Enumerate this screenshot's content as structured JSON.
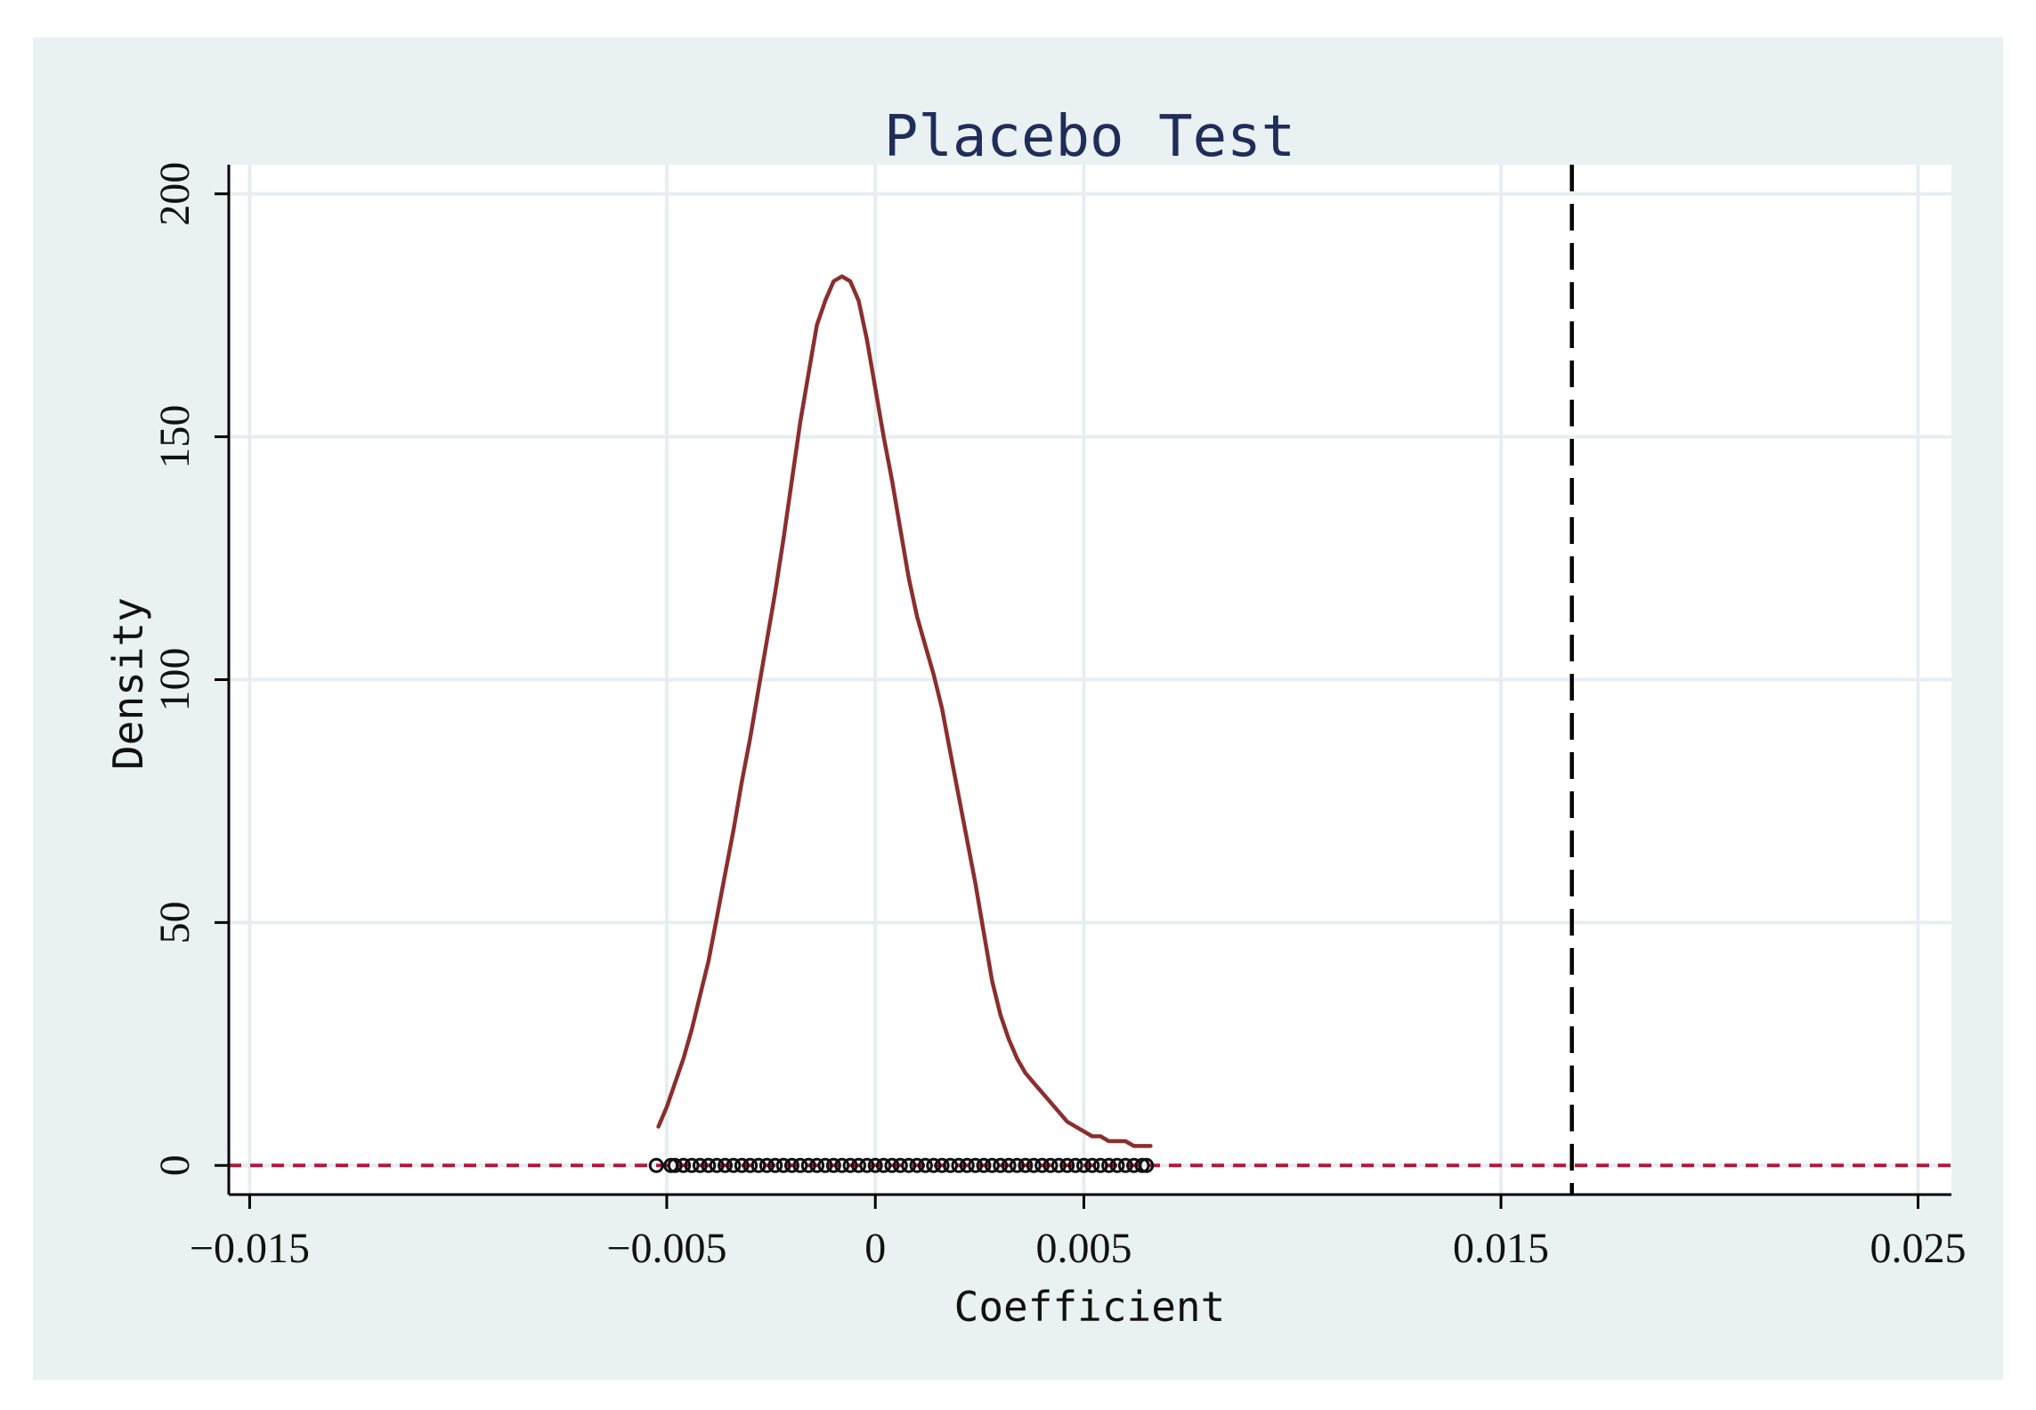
{
  "chart_data": {
    "type": "line",
    "title": "Placebo Test",
    "xlabel": "Coefficient",
    "ylabel": "Density",
    "xlim": [
      -0.0155,
      0.0258
    ],
    "ylim": [
      -6,
      206
    ],
    "x_ticks": [
      -0.015,
      -0.005,
      0,
      0.005,
      0.015,
      0.025
    ],
    "x_tick_labels": [
      "−0.015",
      "−0.005",
      "0",
      "0.005",
      "0.015",
      "0.025"
    ],
    "y_ticks": [
      0,
      50,
      100,
      150,
      200
    ],
    "y_tick_labels": [
      "0",
      "50",
      "100",
      "150",
      "200"
    ],
    "grid": true,
    "reference_lines": {
      "vertical": {
        "x": 0.0167,
        "style": "dashed",
        "color": "#000000"
      },
      "horizontal": {
        "y": 0,
        "style": "dashed",
        "color": "#c0103a"
      }
    },
    "series": [
      {
        "type": "line",
        "color": "#8b2e2e",
        "x": [
          -0.0052,
          -0.005,
          -0.0048,
          -0.0046,
          -0.0044,
          -0.0042,
          -0.004,
          -0.0038,
          -0.0036,
          -0.0034,
          -0.0032,
          -0.003,
          -0.0028,
          -0.0026,
          -0.0024,
          -0.0022,
          -0.002,
          -0.0018,
          -0.0016,
          -0.0014,
          -0.0012,
          -0.001,
          -0.0008,
          -0.0006,
          -0.0004,
          -0.0002,
          0.0,
          0.0002,
          0.0004,
          0.0006,
          0.0008,
          0.001,
          0.0012,
          0.0014,
          0.0016,
          0.0018,
          0.002,
          0.0022,
          0.0024,
          0.0026,
          0.0028,
          0.003,
          0.0032,
          0.0034,
          0.0036,
          0.0038,
          0.004,
          0.0042,
          0.0044,
          0.0046,
          0.0048,
          0.005,
          0.0052,
          0.0054,
          0.0056,
          0.0058,
          0.006,
          0.0062,
          0.0064,
          0.0066
        ],
        "y": [
          8,
          12,
          17,
          22,
          28,
          35,
          42,
          51,
          60,
          69,
          79,
          88,
          98,
          108,
          118,
          129,
          141,
          153,
          163,
          173,
          178,
          182,
          183,
          182,
          178,
          170,
          160,
          150,
          141,
          131,
          121,
          113,
          107,
          101,
          94,
          85,
          76,
          67,
          58,
          48,
          38,
          31,
          26,
          22,
          19,
          17,
          15,
          13,
          11,
          9,
          8,
          7,
          6,
          6,
          5,
          5,
          5,
          4,
          4,
          4
        ]
      },
      {
        "type": "scatter",
        "marker": "hollow-circle",
        "color": "#111111",
        "y_value": 0,
        "x": [
          -0.00525,
          -0.0049,
          -0.0048,
          -0.0046,
          -0.0044,
          -0.0042,
          -0.004,
          -0.0038,
          -0.0036,
          -0.0034,
          -0.0032,
          -0.003,
          -0.0028,
          -0.0026,
          -0.0024,
          -0.0022,
          -0.002,
          -0.0018,
          -0.0016,
          -0.0014,
          -0.0012,
          -0.001,
          -0.0008,
          -0.0006,
          -0.0004,
          -0.0002,
          0.0,
          0.0002,
          0.0004,
          0.0006,
          0.0008,
          0.001,
          0.0012,
          0.0014,
          0.0016,
          0.0018,
          0.002,
          0.0022,
          0.0024,
          0.0026,
          0.0028,
          0.003,
          0.0032,
          0.0034,
          0.0036,
          0.0038,
          0.004,
          0.0042,
          0.0044,
          0.0046,
          0.0048,
          0.005,
          0.0052,
          0.0054,
          0.0056,
          0.0058,
          0.006,
          0.0062,
          0.0064,
          0.0065
        ]
      }
    ]
  }
}
